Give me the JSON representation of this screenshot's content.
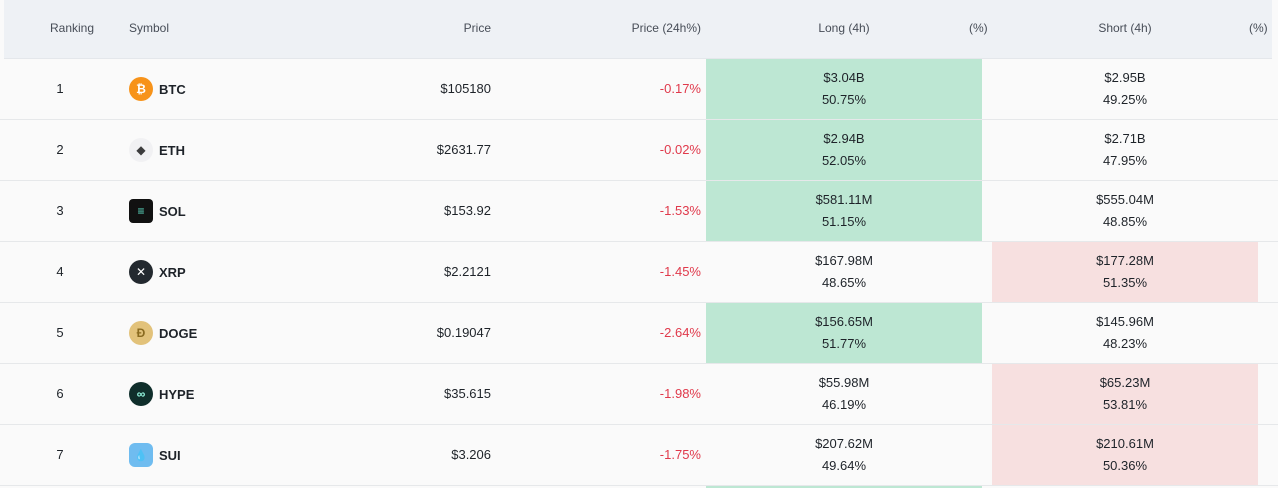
{
  "header": {
    "ranking": "Ranking",
    "symbol": "Symbol",
    "price": "Price",
    "price24": "Price (24h%)",
    "long": "Long (4h)",
    "long_pct": "(%)",
    "short": "Short (4h)",
    "short_pct": "(%)"
  },
  "colors": {
    "negative": "#e0394b",
    "long_highlight": "#bde7d3",
    "short_highlight": "#f7e0e0"
  },
  "rows": [
    {
      "rank": "1",
      "symbol": "BTC",
      "icon": "bitcoin-icon",
      "icon_glyph": "₿",
      "icon_color": "#f7931a",
      "price": "$105180",
      "change": "-0.17%",
      "long_value": "$3.04B",
      "long_pct": "50.75%",
      "short_value": "$2.95B",
      "short_pct": "49.25%",
      "dominant": "long"
    },
    {
      "rank": "2",
      "symbol": "ETH",
      "icon": "ethereum-icon",
      "icon_glyph": "◆",
      "icon_color": "#f1f1f3",
      "price": "$2631.77",
      "change": "-0.02%",
      "long_value": "$2.94B",
      "long_pct": "52.05%",
      "short_value": "$2.71B",
      "short_pct": "47.95%",
      "dominant": "long"
    },
    {
      "rank": "3",
      "symbol": "SOL",
      "icon": "solana-icon",
      "icon_glyph": "≡",
      "icon_color": "#111111",
      "price": "$153.92",
      "change": "-1.53%",
      "long_value": "$581.11M",
      "long_pct": "51.15%",
      "short_value": "$555.04M",
      "short_pct": "48.85%",
      "dominant": "long"
    },
    {
      "rank": "4",
      "symbol": "XRP",
      "icon": "xrp-icon",
      "icon_glyph": "✕",
      "icon_color": "#23292f",
      "price": "$2.2121",
      "change": "-1.45%",
      "long_value": "$167.98M",
      "long_pct": "48.65%",
      "short_value": "$177.28M",
      "short_pct": "51.35%",
      "dominant": "short"
    },
    {
      "rank": "5",
      "symbol": "DOGE",
      "icon": "dogecoin-icon",
      "icon_glyph": "Ð",
      "icon_color": "#e2c27a",
      "price": "$0.19047",
      "change": "-2.64%",
      "long_value": "$156.65M",
      "long_pct": "51.77%",
      "short_value": "$145.96M",
      "short_pct": "48.23%",
      "dominant": "long"
    },
    {
      "rank": "6",
      "symbol": "HYPE",
      "icon": "hyperliquid-icon",
      "icon_glyph": "∞",
      "icon_color": "#0f2e2b",
      "price": "$35.615",
      "change": "-1.98%",
      "long_value": "$55.98M",
      "long_pct": "46.19%",
      "short_value": "$65.23M",
      "short_pct": "53.81%",
      "dominant": "short"
    },
    {
      "rank": "7",
      "symbol": "SUI",
      "icon": "sui-icon",
      "icon_glyph": "💧",
      "icon_color": "#6fbcf0",
      "price": "$3.206",
      "change": "-1.75%",
      "long_value": "$207.62M",
      "long_pct": "49.64%",
      "short_value": "$210.61M",
      "short_pct": "50.36%",
      "dominant": "short"
    }
  ]
}
